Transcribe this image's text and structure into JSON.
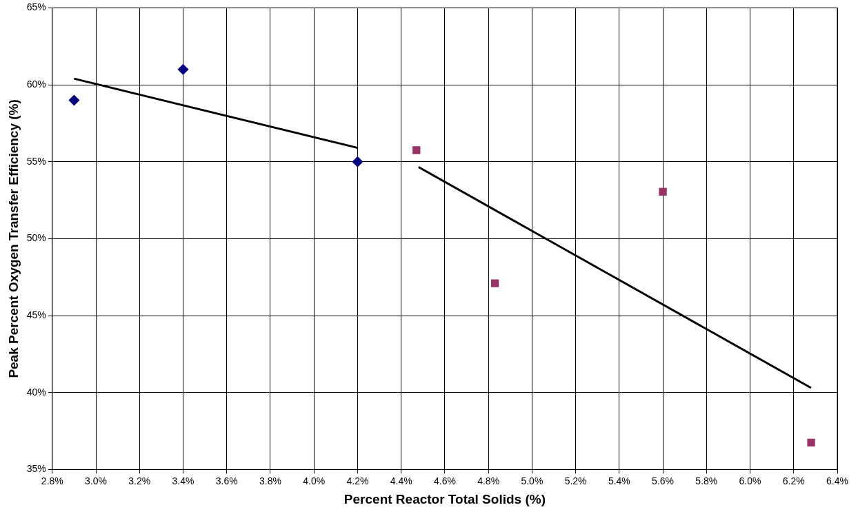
{
  "chart_data": {
    "type": "scatter",
    "xlabel": "Percent Reactor Total Solids (%)",
    "ylabel": "Peak Percent Oxygen Transfer Efficiency (%)",
    "xlim": [
      2.8,
      6.4
    ],
    "xticks": [
      {
        "value": 2.8,
        "label": "2.8%"
      },
      {
        "value": 3.0,
        "label": "3.0%"
      },
      {
        "value": 3.2,
        "label": "3.2%"
      },
      {
        "value": 3.4,
        "label": "3.4%"
      },
      {
        "value": 3.6,
        "label": "3.6%"
      },
      {
        "value": 3.8,
        "label": "3.8%"
      },
      {
        "value": 4.0,
        "label": "4.0%"
      },
      {
        "value": 4.2,
        "label": "4.2%"
      },
      {
        "value": 4.4,
        "label": "4.4%"
      },
      {
        "value": 4.6,
        "label": "4.6%"
      },
      {
        "value": 4.8,
        "label": "4.8%"
      },
      {
        "value": 5.0,
        "label": "5.0%"
      },
      {
        "value": 5.2,
        "label": "5.2%"
      },
      {
        "value": 5.4,
        "label": "5.4%"
      },
      {
        "value": 5.6,
        "label": "5.6%"
      },
      {
        "value": 5.8,
        "label": "5.8%"
      },
      {
        "value": 6.0,
        "label": "6.0%"
      },
      {
        "value": 6.2,
        "label": "6.2%"
      },
      {
        "value": 6.4,
        "label": "6.4%"
      }
    ],
    "ylim": [
      35,
      65
    ],
    "yticks": [
      {
        "value": 35,
        "label": "35%"
      },
      {
        "value": 40,
        "label": "40%"
      },
      {
        "value": 45,
        "label": "45%"
      },
      {
        "value": 50,
        "label": "50%"
      },
      {
        "value": 55,
        "label": "55%"
      },
      {
        "value": 60,
        "label": "60%"
      },
      {
        "value": 65,
        "label": "65%"
      }
    ],
    "grid": true,
    "legend": false,
    "series": [
      {
        "type": "scatter",
        "marker": "diamond",
        "color": "#000080",
        "x": [
          2.9,
          3.4,
          4.2
        ],
        "values": [
          59,
          61,
          55
        ]
      },
      {
        "type": "scatter",
        "marker": "square",
        "color": "#993366",
        "x": [
          4.47,
          4.83,
          5.6,
          6.28
        ],
        "values": [
          55.75,
          47.1,
          53.05,
          36.75
        ]
      },
      {
        "type": "line",
        "marker": "none",
        "color": "#000000",
        "x": [
          2.9,
          4.2
        ],
        "values": [
          60.4,
          55.9
        ]
      },
      {
        "type": "line",
        "marker": "none",
        "color": "#000000",
        "x": [
          4.48,
          6.28
        ],
        "values": [
          54.65,
          40.3
        ]
      }
    ]
  }
}
